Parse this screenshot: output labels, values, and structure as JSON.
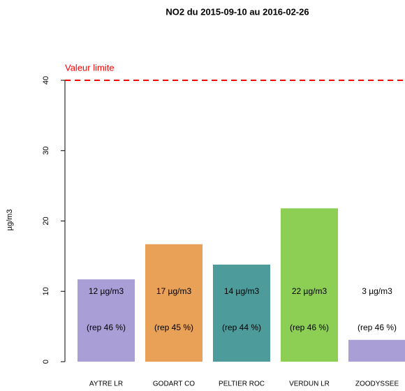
{
  "chart_data": {
    "type": "bar",
    "title": "NO2 du 2015-09-10 au 2016-02-26",
    "y_label": "µg/m3",
    "categories": [
      "AYTRE LR",
      "GODART CO",
      "PELTIER ROC",
      "VERDUN LR",
      "ZOODYSSEE"
    ],
    "values": [
      11.7,
      16.7,
      13.8,
      21.8,
      3.1
    ],
    "value_labels": [
      "12 µg/m3",
      "17 µg/m3",
      "14 µg/m3",
      "22 µg/m3",
      "3 µg/m3"
    ],
    "coverage_labels": [
      "(rep  46 %)",
      "(rep  45 %)",
      "(rep  44 %)",
      "(rep  46 %)",
      "(rep  46 %)"
    ],
    "colors": [
      "#a99ed6",
      "#e9a057",
      "#4e9b9b",
      "#8dcf55",
      "#a99ed6"
    ],
    "ylim": [
      0,
      40
    ],
    "yticks": [
      0,
      10,
      20,
      30,
      40
    ],
    "limit": {
      "value": 40,
      "label": "Valeur limite",
      "color": "#ff0000"
    }
  }
}
